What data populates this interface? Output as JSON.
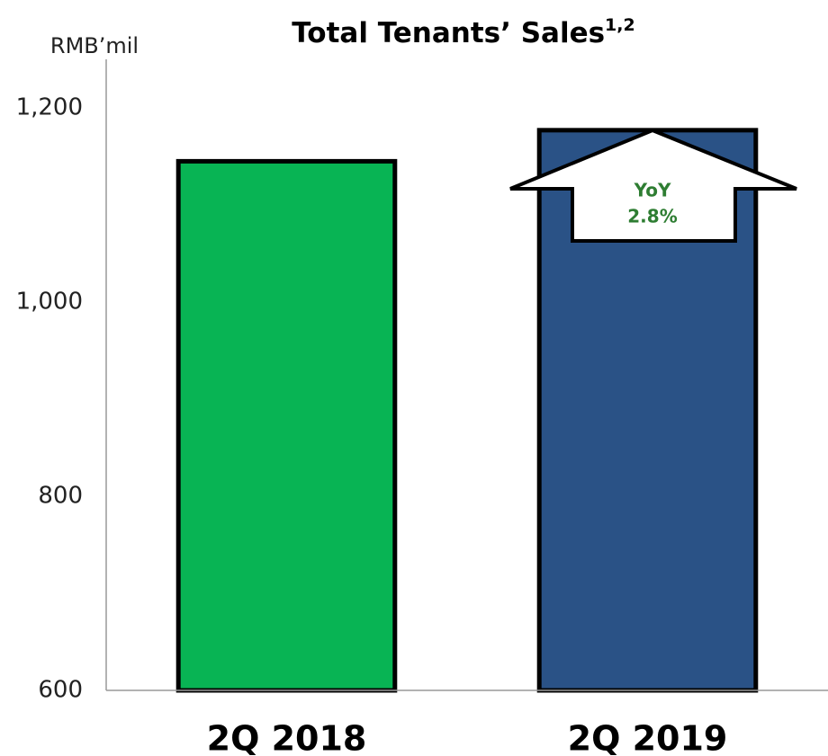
{
  "chart_data": {
    "type": "bar",
    "title": "Total Tenants’ Sales",
    "title_note": "1,2",
    "y_label": "RMB’mil",
    "categories": [
      "2Q 2018",
      "2Q 2019"
    ],
    "values": [
      1145,
      1177
    ],
    "colors": [
      "#08b454",
      "#2a5286"
    ],
    "ylim": [
      600,
      1250
    ],
    "yticks": [
      600,
      800,
      {
        "value": 1000,
        "label": "1,000"
      },
      {
        "value": 1200,
        "label": "1,200"
      }
    ],
    "grid": false,
    "annotation": [
      "YoY",
      "2.8%"
    ]
  }
}
